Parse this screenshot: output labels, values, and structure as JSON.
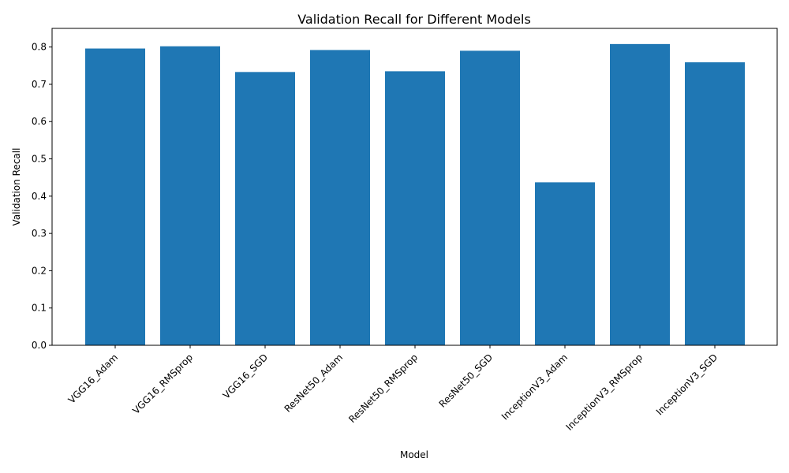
{
  "chart_data": {
    "type": "bar",
    "title": "Validation Recall for Different Models",
    "xlabel": "Model",
    "ylabel": "Validation Recall",
    "categories": [
      "VGG16_Adam",
      "VGG16_RMSprop",
      "VGG16_SGD",
      "ResNet50_Adam",
      "ResNet50_RMSprop",
      "ResNet50_SGD",
      "InceptionV3_Adam",
      "InceptionV3_RMSprop",
      "InceptionV3_SGD"
    ],
    "values": [
      0.796,
      0.802,
      0.733,
      0.792,
      0.735,
      0.79,
      0.437,
      0.808,
      0.759
    ],
    "ylim": [
      0,
      0.85
    ],
    "yticks": [
      "0.0",
      "0.1",
      "0.2",
      "0.3",
      "0.4",
      "0.5",
      "0.6",
      "0.7",
      "0.8"
    ],
    "bar_color": "#1f77b4",
    "grid": false,
    "legend": "none"
  }
}
